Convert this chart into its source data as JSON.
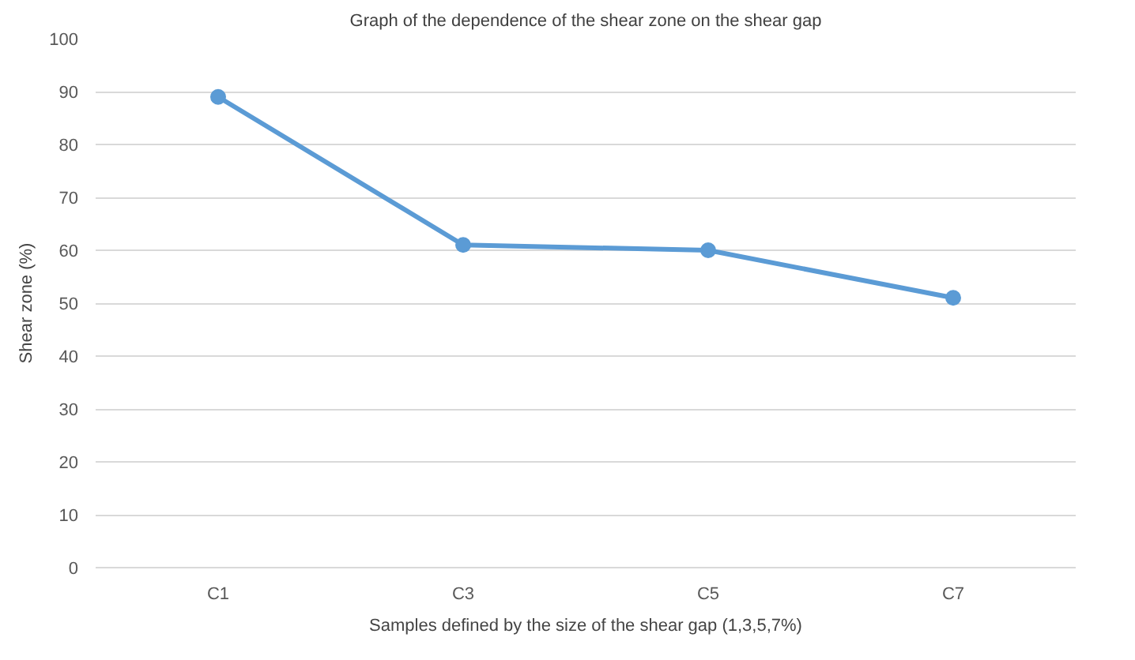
{
  "chart_data": {
    "type": "line",
    "title": "Graph of the dependence of the shear zone on the shear gap",
    "xlabel": "Samples defined by the size of the shear gap (1,3,5,7%)",
    "ylabel": "Shear zone (%)",
    "categories": [
      "C1",
      "C3",
      "C5",
      "C7"
    ],
    "series": [
      {
        "color": "#5b9bd5",
        "values": [
          89,
          61,
          60,
          51
        ]
      }
    ],
    "ylim": [
      0,
      100
    ],
    "yticks": [
      0,
      10,
      20,
      30,
      40,
      50,
      60,
      70,
      80,
      90,
      100
    ],
    "grid": "y",
    "marker": "circle",
    "line_style": "solid"
  }
}
